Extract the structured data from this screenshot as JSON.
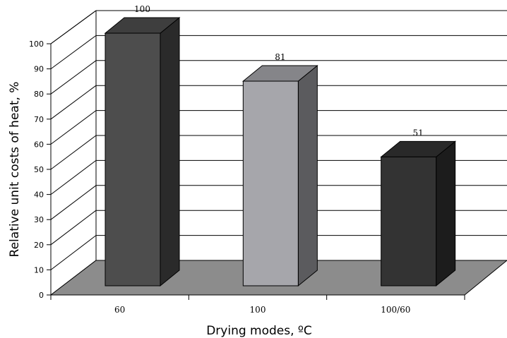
{
  "chart_data": {
    "type": "bar",
    "categories": [
      "60",
      "100",
      "100/60"
    ],
    "values": [
      100,
      81,
      51
    ],
    "data_labels": [
      "100",
      "81",
      "51"
    ],
    "xlabel": "Drying modes, ºC",
    "ylabel": "Relative unit costs of heat, %",
    "ylim": [
      0,
      100
    ],
    "yticks": [
      "0",
      "10",
      "20",
      "30",
      "40",
      "50",
      "60",
      "70",
      "80",
      "90",
      "100"
    ],
    "three_d": true,
    "grid": true,
    "colors": {
      "bars": [
        "#4d4d4d",
        "#a6a6ab",
        "#333333"
      ],
      "floor": "#8c8c8c"
    }
  }
}
